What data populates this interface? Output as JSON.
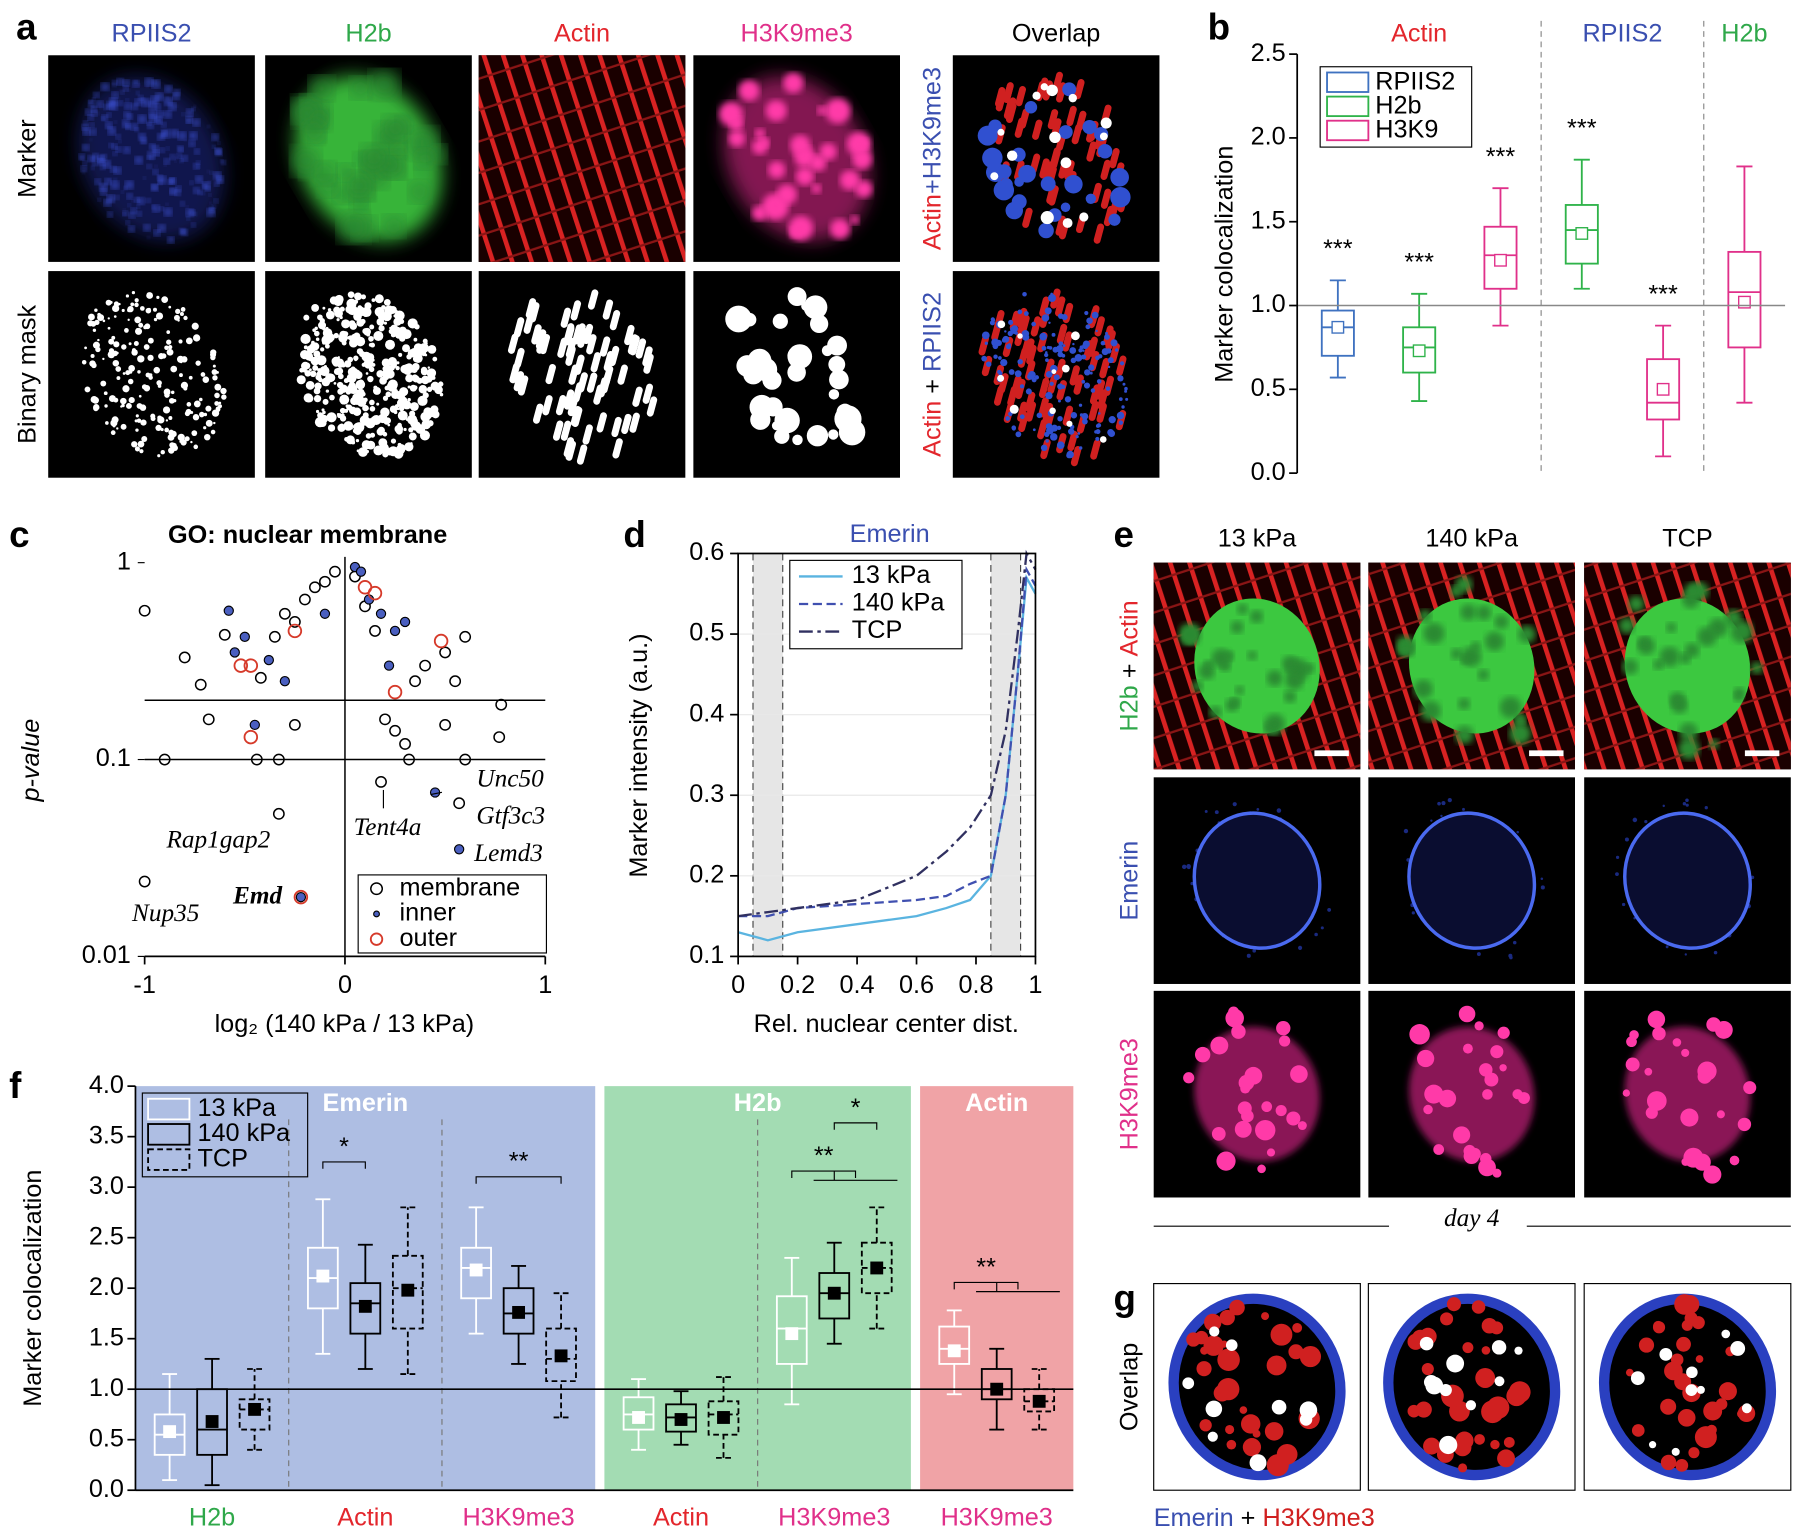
{
  "figure": {
    "panel_labels": [
      "a",
      "b",
      "c",
      "d",
      "e",
      "f",
      "g"
    ],
    "a": {
      "columns": [
        "RPIIS2",
        "H2b",
        "Actin",
        "H3K9me3",
        "Overlap"
      ],
      "rows": [
        "Marker",
        "Binary mask"
      ],
      "overlap_labels": [
        [
          "Actin",
          "+H3K9me3"
        ],
        [
          "Actin",
          " + ",
          "RPIIS2"
        ]
      ]
    },
    "e": {
      "columns": [
        "13 kPa",
        "140 kPa",
        "TCP"
      ],
      "rows": [
        [
          "H2b",
          " + ",
          "Actin"
        ],
        [
          "Emerin"
        ],
        [
          "H3K9me3"
        ]
      ],
      "caption": "day 4"
    },
    "g": {
      "row": "Overlap",
      "caption": [
        "Emerin",
        " + ",
        "H3K9me3"
      ]
    }
  },
  "chart_data": [
    {
      "type": "box",
      "ylabel": "Marker colocalization",
      "groups": [
        {
          "name": "Actin",
          "color": "#e3262c"
        },
        {
          "name": "RPIIS2",
          "color": "#3a4fb0"
        },
        {
          "name": "H2b",
          "color": "#2fa84a"
        }
      ],
      "series": [
        {
          "name": "RPIIS2",
          "color": "#3f72c0",
          "boxes": [
            {
              "low": 0.57,
              "q1": 0.7,
              "median": 0.87,
              "q3": 0.97,
              "high": 1.15,
              "mean": 0.87,
              "sig": "***"
            },
            null,
            null
          ]
        },
        {
          "name": "H2b",
          "color": "#2fb34a",
          "boxes": [
            {
              "low": 0.43,
              "q1": 0.6,
              "median": 0.75,
              "q3": 0.87,
              "high": 1.07,
              "mean": 0.73,
              "sig": "***"
            },
            {
              "low": 1.1,
              "q1": 1.25,
              "median": 1.45,
              "q3": 1.6,
              "high": 1.87,
              "mean": 1.43,
              "sig": "***"
            },
            null
          ]
        },
        {
          "name": "H3K9",
          "color": "#e0308a",
          "boxes": [
            {
              "low": 0.88,
              "q1": 1.1,
              "median": 1.3,
              "q3": 1.47,
              "high": 1.7,
              "mean": 1.27,
              "sig": "***"
            },
            {
              "low": 0.1,
              "q1": 0.32,
              "median": 0.42,
              "q3": 0.68,
              "high": 0.88,
              "mean": 0.5,
              "sig": "***"
            },
            {
              "low": 0.42,
              "q1": 0.75,
              "median": 1.08,
              "q3": 1.32,
              "high": 1.83,
              "mean": 1.02
            }
          ]
        }
      ],
      "ylim": [
        0,
        2.5
      ],
      "yticks": [
        {
          "value": 0,
          "label": "0.0"
        },
        0.5,
        {
          "value": 1,
          "label": "1.0"
        },
        1.5,
        {
          "value": 2,
          "label": "2.0"
        },
        2.5
      ],
      "refline": 1,
      "legend": "top-left"
    },
    {
      "type": "scatter",
      "title": "GO: nuclear membrane",
      "xlabel": "log₂ (140 kPa / 13 kPa)",
      "ylabel": "p-value",
      "series": [
        {
          "name": "membrane",
          "color": "#000000",
          "x": [
            -1,
            -0.9,
            -0.8,
            -0.72,
            -0.68,
            -0.6,
            -0.42,
            -0.35,
            -0.3,
            -0.25,
            -0.2,
            -0.15,
            -0.1,
            -0.05,
            -0.44,
            -0.33,
            -0.33,
            -0.25,
            0.05,
            0.1,
            0.15,
            0.2,
            0.25,
            0.3,
            0.32,
            0.35,
            0.4,
            0.5,
            0.55,
            0.6,
            0.78,
            0.77,
            0.5,
            0.6,
            0.18,
            0.57,
            -1
          ],
          "values": [
            0.57,
            0.1,
            0.33,
            0.24,
            0.16,
            0.43,
            0.26,
            0.42,
            0.55,
            0.5,
            0.65,
            0.75,
            0.8,
            0.9,
            0.1,
            0.1,
            0.053,
            0.15,
            0.85,
            0.6,
            0.45,
            0.16,
            0.14,
            0.12,
            0.1,
            0.25,
            0.3,
            0.35,
            0.25,
            0.42,
            0.19,
            0.13,
            0.15,
            0.1,
            0.077,
            0.06,
            0.024
          ]
        },
        {
          "name": "inner",
          "color": "#4a5fc0",
          "x": [
            -0.58,
            -0.5,
            -0.55,
            -0.38,
            -0.3,
            -0.45,
            0.05,
            0.12,
            0.18,
            0.25,
            0.22,
            0.3,
            0.45,
            0.57,
            -0.22,
            0.08,
            -0.1
          ],
          "values": [
            0.57,
            0.42,
            0.35,
            0.32,
            0.25,
            0.15,
            0.95,
            0.65,
            0.55,
            0.45,
            0.3,
            0.5,
            0.068,
            0.035,
            0.02,
            0.9,
            0.55
          ]
        },
        {
          "name": "outer",
          "color": "#d63a2a",
          "x": [
            -0.52,
            -0.47,
            -0.47,
            -0.25,
            0.1,
            0.15,
            0.48,
            0.25,
            -0.22
          ],
          "values": [
            0.3,
            0.3,
            0.13,
            0.45,
            0.75,
            0.7,
            0.4,
            0.22,
            0.02
          ]
        }
      ],
      "annotations": [
        "Unc50",
        "Gtf3c3",
        "Lemd3",
        "Tent4a",
        "Rap1gap2",
        "Nup35",
        "Emd"
      ],
      "xlim": [
        -1,
        1
      ],
      "xticks": [
        -1,
        0,
        1
      ],
      "ylim": [
        0.01,
        1
      ],
      "yticks": [
        0.01,
        0.1,
        1
      ],
      "log_y": true,
      "hlines": [
        0.2,
        0.1
      ],
      "vline": 0,
      "legend": "bottom-right"
    },
    {
      "type": "line",
      "title": "Emerin",
      "xlabel": "Rel. nuclear center dist.",
      "ylabel": "Marker intensity (a.u.)",
      "x": [
        0,
        0.1,
        0.2,
        0.4,
        0.6,
        0.7,
        0.78,
        0.85,
        0.9,
        0.94,
        0.97,
        1
      ],
      "series": [
        {
          "name": "13 kPa",
          "color": "#5ab4e0",
          "style": "solid",
          "values": [
            0.13,
            0.12,
            0.13,
            0.14,
            0.15,
            0.16,
            0.17,
            0.2,
            0.3,
            0.45,
            0.57,
            0.55
          ]
        },
        {
          "name": "140 kPa",
          "color": "#4050b0",
          "style": "dashed",
          "values": [
            0.15,
            0.15,
            0.16,
            0.165,
            0.17,
            0.175,
            0.19,
            0.2,
            0.3,
            0.45,
            0.58,
            0.56
          ]
        },
        {
          "name": "TCP",
          "color": "#303060",
          "style": "dashdot",
          "values": [
            0.15,
            0.155,
            0.16,
            0.17,
            0.2,
            0.23,
            0.26,
            0.3,
            0.38,
            0.5,
            0.6,
            0.58
          ]
        }
      ],
      "shaded": [
        [
          0.05,
          0.15
        ],
        [
          0.85,
          0.95
        ]
      ],
      "xlim": [
        0,
        1
      ],
      "xticks": [
        0,
        0.2,
        0.4,
        0.6,
        0.8,
        1
      ],
      "ylim": [
        0.1,
        0.6
      ],
      "yticks": [
        0.1,
        0.2,
        0.3,
        0.4,
        0.5,
        0.6
      ],
      "legend": "top-left"
    },
    {
      "type": "box",
      "ylabel": "Marker colocalization",
      "series": [
        {
          "name": "13 kPa",
          "style": "white"
        },
        {
          "name": "140 kPa",
          "style": "solid"
        },
        {
          "name": "TCP",
          "style": "dashed"
        }
      ],
      "groups": [
        {
          "name": "Emerin",
          "color": "#aebee3",
          "categories": [
            {
              "name": "H2b",
              "color": "#2fa84a",
              "boxes": [
                {
                  "low": 0.1,
                  "q1": 0.35,
                  "median": 0.55,
                  "q3": 0.75,
                  "high": 1.15,
                  "mean": 0.58
                },
                {
                  "low": 0.05,
                  "q1": 0.35,
                  "median": 0.6,
                  "q3": 1.0,
                  "high": 1.3,
                  "mean": 0.68
                },
                {
                  "low": 0.4,
                  "q1": 0.6,
                  "median": 0.8,
                  "q3": 0.9,
                  "high": 1.2,
                  "mean": 0.8
                }
              ]
            },
            {
              "name": "Actin",
              "color": "#e3262c",
              "significance": [
                "*"
              ],
              "boxes": [
                {
                  "low": 1.35,
                  "q1": 1.8,
                  "median": 2.1,
                  "q3": 2.4,
                  "high": 2.88,
                  "mean": 2.12
                },
                {
                  "low": 1.2,
                  "q1": 1.55,
                  "median": 1.85,
                  "q3": 2.05,
                  "high": 2.43,
                  "mean": 1.82
                },
                {
                  "low": 1.15,
                  "q1": 1.6,
                  "median": 2.0,
                  "q3": 2.32,
                  "high": 2.8,
                  "mean": 1.98
                }
              ]
            },
            {
              "name": "H3K9me3",
              "color": "#e0308a",
              "significance": [
                "**"
              ],
              "boxes": [
                {
                  "low": 1.55,
                  "q1": 1.9,
                  "median": 2.2,
                  "q3": 2.4,
                  "high": 2.8,
                  "mean": 2.18
                },
                {
                  "low": 1.25,
                  "q1": 1.55,
                  "median": 1.75,
                  "q3": 2.0,
                  "high": 2.22,
                  "mean": 1.76
                },
                {
                  "low": 0.72,
                  "q1": 1.08,
                  "median": 1.3,
                  "q3": 1.6,
                  "high": 1.95,
                  "mean": 1.33
                }
              ]
            }
          ]
        },
        {
          "name": "H2b",
          "color": "#a3dcb3",
          "categories": [
            {
              "name": "Actin",
              "color": "#e3262c",
              "boxes": [
                {
                  "low": 0.4,
                  "q1": 0.6,
                  "median": 0.75,
                  "q3": 0.92,
                  "high": 1.1,
                  "mean": 0.72
                },
                {
                  "low": 0.45,
                  "q1": 0.58,
                  "median": 0.72,
                  "q3": 0.85,
                  "high": 0.98,
                  "mean": 0.7
                },
                {
                  "low": 0.32,
                  "q1": 0.55,
                  "median": 0.75,
                  "q3": 0.88,
                  "high": 1.12,
                  "mean": 0.72
                }
              ]
            },
            {
              "name": "H3K9me3",
              "color": "#e0308a",
              "significance": [
                "**",
                "*"
              ],
              "boxes": [
                {
                  "low": 0.85,
                  "q1": 1.25,
                  "median": 1.6,
                  "q3": 1.92,
                  "high": 2.3,
                  "mean": 1.55
                },
                {
                  "low": 1.45,
                  "q1": 1.7,
                  "median": 1.95,
                  "q3": 2.15,
                  "high": 2.45,
                  "mean": 1.95
                },
                {
                  "low": 1.6,
                  "q1": 1.95,
                  "median": 2.2,
                  "q3": 2.45,
                  "high": 2.8,
                  "mean": 2.2
                }
              ]
            }
          ]
        },
        {
          "name": "Actin",
          "color": "#f0a3a6",
          "categories": [
            {
              "name": "H3K9me3",
              "color": "#e0308a",
              "significance": [
                "**"
              ],
              "boxes": [
                {
                  "low": 0.95,
                  "q1": 1.25,
                  "median": 1.4,
                  "q3": 1.62,
                  "high": 1.78,
                  "mean": 1.38
                },
                {
                  "low": 0.6,
                  "q1": 0.9,
                  "median": 1.0,
                  "q3": 1.2,
                  "high": 1.4,
                  "mean": 1.0
                },
                {
                  "low": 0.6,
                  "q1": 0.78,
                  "median": 0.88,
                  "q3": 1.0,
                  "high": 1.2,
                  "mean": 0.88
                }
              ]
            }
          ]
        }
      ],
      "ylim": [
        0,
        4
      ],
      "yticks": [
        {
          "value": 0,
          "label": "0.0"
        },
        0.5,
        {
          "value": 1,
          "label": "1.0"
        },
        1.5,
        {
          "value": 2,
          "label": "2.0"
        },
        2.5,
        {
          "value": 3,
          "label": "3.0"
        },
        3.5,
        {
          "value": 4,
          "label": "4.0"
        }
      ],
      "refline": 1,
      "legend": "top-left"
    }
  ]
}
